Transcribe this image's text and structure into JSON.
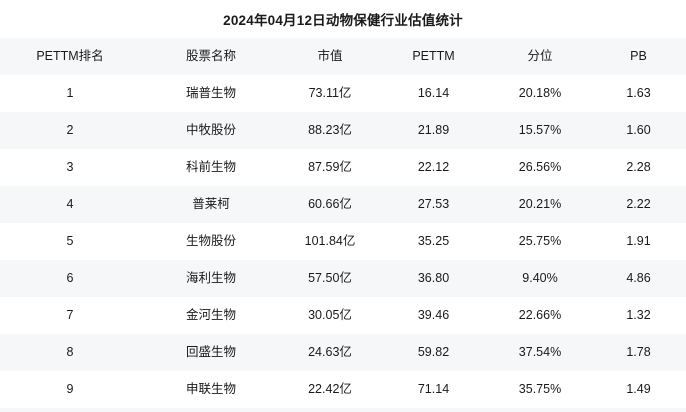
{
  "title": "2024年04月12日动物保健行业估值统计",
  "colors": {
    "stripe": "#f6f7f9",
    "background": "#ffffff",
    "text": "#1a1a1a"
  },
  "chart_data": {
    "type": "table",
    "title": "2024年04月12日动物保健行业估值统计",
    "columns": [
      "PETTM排名",
      "股票名称",
      "市值",
      "PETTM",
      "分位",
      "PB"
    ],
    "rows": [
      [
        "1",
        "瑞普生物",
        "73.11亿",
        "16.14",
        "20.18%",
        "1.63"
      ],
      [
        "2",
        "中牧股份",
        "88.23亿",
        "21.89",
        "15.57%",
        "1.60"
      ],
      [
        "3",
        "科前生物",
        "87.59亿",
        "22.12",
        "26.56%",
        "2.28"
      ],
      [
        "4",
        "普莱柯",
        "60.66亿",
        "27.53",
        "20.21%",
        "2.22"
      ],
      [
        "5",
        "生物股份",
        "101.84亿",
        "35.25",
        "25.75%",
        "1.91"
      ],
      [
        "6",
        "海利生物",
        "57.50亿",
        "36.80",
        "9.40%",
        "4.86"
      ],
      [
        "7",
        "金河生物",
        "30.05亿",
        "39.46",
        "22.66%",
        "1.32"
      ],
      [
        "8",
        "回盛生物",
        "24.63亿",
        "59.82",
        "37.54%",
        "1.78"
      ],
      [
        "9",
        "申联生物",
        "22.42亿",
        "71.14",
        "35.75%",
        "1.49"
      ]
    ],
    "layout_hints": {
      "zebra_striping": true,
      "first_data_row_background": "white",
      "alignment": "center",
      "gridlines": "none"
    }
  }
}
